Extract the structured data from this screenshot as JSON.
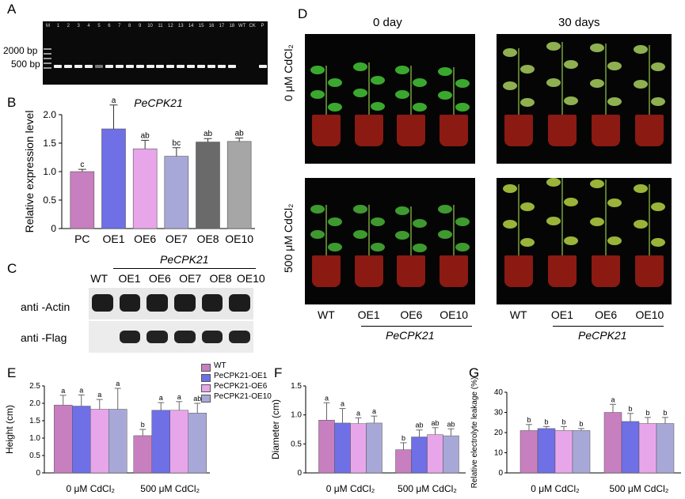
{
  "panels": {
    "A": {
      "letter": "A",
      "lane_labels": [
        "M",
        "1",
        "2",
        "3",
        "4",
        "5",
        "6",
        "7",
        "8",
        "9",
        "10",
        "11",
        "12",
        "13",
        "14",
        "15",
        "16",
        "17",
        "18",
        "WT",
        "CK",
        "P"
      ],
      "size_labels": [
        "2000 bp",
        "500 bp"
      ]
    },
    "B": {
      "letter": "B",
      "chart_data": {
        "type": "bar",
        "title": "PeCPK21",
        "ylabel": "Relative expression level",
        "categories": [
          "PC",
          "OE1",
          "OE6",
          "OE7",
          "OE8",
          "OE10"
        ],
        "values": [
          1.0,
          1.75,
          1.4,
          1.27,
          1.52,
          1.53
        ],
        "errors": [
          0.04,
          0.42,
          0.15,
          0.15,
          0.06,
          0.06
        ],
        "letters": [
          "c",
          "a",
          "ab",
          "bc",
          "ab",
          "ab"
        ],
        "colors": [
          "#c77fbf",
          "#6f6fe6",
          "#e8a6ea",
          "#a8a8d8",
          "#6a6a6a",
          "#a6a6a6"
        ],
        "ylim": [
          0,
          2.0
        ],
        "yticks": [
          "0",
          "0.5",
          "1.0",
          "1.5",
          "2.0"
        ]
      }
    },
    "C": {
      "letter": "C",
      "gene_label": "PeCPK21",
      "lanes": [
        "WT",
        "OE1",
        "OE6",
        "OE7",
        "OE8",
        "OE10"
      ],
      "rows": [
        "anti -Actin",
        "anti -Flag"
      ]
    },
    "D": {
      "letter": "D",
      "col_headers": [
        "0 day",
        "30 days"
      ],
      "row_labels": [
        "0 μM CdCl₂",
        "500 μM CdCl₂"
      ],
      "lines": [
        "WT",
        "OE1",
        "OE6",
        "OE10"
      ],
      "gene_label": "PeCPK21"
    },
    "E": {
      "letter": "E",
      "legend": [
        "WT",
        "PeCPK21-OE1",
        "PeCPK21-OE6",
        "PeCPK21-OE10"
      ],
      "chart_data": {
        "type": "bar",
        "ylabel": "Height (cm)",
        "categories": [
          "0 μM CdCl₂",
          "500 μM CdCl₂"
        ],
        "series": [
          {
            "name": "WT",
            "values": [
              1.95,
              1.07
            ],
            "errors": [
              0.28,
              0.18
            ],
            "letters": [
              "a",
              "b"
            ]
          },
          {
            "name": "PeCPK21-OE1",
            "values": [
              1.92,
              1.8
            ],
            "errors": [
              0.32,
              0.22
            ],
            "letters": [
              "a",
              "a"
            ]
          },
          {
            "name": "PeCPK21-OE6",
            "values": [
              1.83,
              1.8
            ],
            "errors": [
              0.28,
              0.25
            ],
            "letters": [
              "a",
              "a"
            ]
          },
          {
            "name": "PeCPK21-OE10",
            "values": [
              1.83,
              1.72
            ],
            "errors": [
              0.6,
              0.28
            ],
            "letters": [
              "a",
              "ab"
            ]
          }
        ],
        "ylim": [
          0,
          2.5
        ],
        "yticks": [
          "0",
          "0.5",
          "1.0",
          "1.5",
          "2.0",
          "2.5"
        ]
      }
    },
    "F": {
      "letter": "F",
      "chart_data": {
        "type": "bar",
        "ylabel": "Diameter (cm)",
        "categories": [
          "0 μM CdCl₂",
          "500 μM CdCl₂"
        ],
        "series": [
          {
            "name": "WT",
            "values": [
              0.91,
              0.4
            ],
            "errors": [
              0.3,
              0.12
            ],
            "letters": [
              "a",
              "b"
            ]
          },
          {
            "name": "PeCPK21-OE1",
            "values": [
              0.86,
              0.62
            ],
            "errors": [
              0.25,
              0.12
            ],
            "letters": [
              "a",
              "ab"
            ]
          },
          {
            "name": "PeCPK21-OE6",
            "values": [
              0.85,
              0.66
            ],
            "errors": [
              0.1,
              0.12
            ],
            "letters": [
              "a",
              "ab"
            ]
          },
          {
            "name": "PeCPK21-OE10",
            "values": [
              0.86,
              0.64
            ],
            "errors": [
              0.12,
              0.12
            ],
            "letters": [
              "a",
              "ab"
            ]
          }
        ],
        "ylim": [
          0,
          1.5
        ],
        "yticks": [
          "0",
          "0.5",
          "1.0",
          "1.5"
        ]
      }
    },
    "G": {
      "letter": "G",
      "chart_data": {
        "type": "bar",
        "ylabel": "Relative electrolyte leakage (%)",
        "categories": [
          "0 μM CdCl₂",
          "500 μM CdCl₂"
        ],
        "series": [
          {
            "name": "WT",
            "values": [
              21,
              30
            ],
            "errors": [
              3,
              4
            ],
            "letters": [
              "b",
              "a"
            ]
          },
          {
            "name": "PeCPK21-OE1",
            "values": [
              22,
              25.5
            ],
            "errors": [
              1,
              4
            ],
            "letters": [
              "b",
              "b"
            ]
          },
          {
            "name": "PeCPK21-OE6",
            "values": [
              21,
              24.5
            ],
            "errors": [
              2,
              3
            ],
            "letters": [
              "b",
              "b"
            ]
          },
          {
            "name": "PeCPK21-OE10",
            "values": [
              21,
              24.5
            ],
            "errors": [
              1,
              3
            ],
            "letters": [
              "b",
              "b"
            ]
          }
        ],
        "ylim": [
          0,
          40
        ],
        "yticks": [
          "0",
          "10",
          "20",
          "30",
          "40"
        ]
      }
    }
  },
  "group_colors": [
    "#c77fbf",
    "#6f6fe6",
    "#e8a6ea",
    "#a8a8d8"
  ]
}
